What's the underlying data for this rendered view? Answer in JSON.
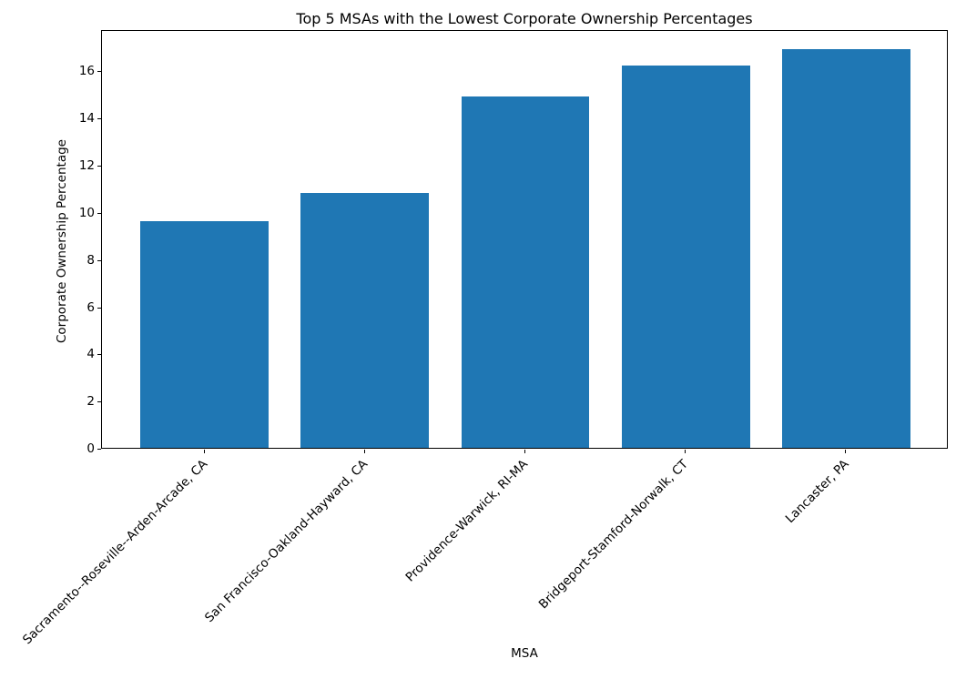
{
  "chart_data": {
    "type": "bar",
    "title": "Top 5 MSAs with the Lowest Corporate Ownership Percentages",
    "xlabel": "MSA",
    "ylabel": "Corporate Ownership Percentage",
    "categories": [
      "Sacramento--Roseville--Arden-Arcade, CA",
      "San Francisco-Oakland-Hayward, CA",
      "Providence-Warwick, RI-MA",
      "Bridgeport-Stamford-Norwalk, CT",
      "Lancaster, PA"
    ],
    "values": [
      9.6,
      10.8,
      14.9,
      16.2,
      16.9
    ],
    "yticks": [
      0,
      2,
      4,
      6,
      8,
      10,
      12,
      14,
      16
    ],
    "ylim": [
      0,
      17.75
    ],
    "bar_color": "#1f77b4",
    "grid": false,
    "legend": "none",
    "tick_label_rotation_deg": 45
  }
}
